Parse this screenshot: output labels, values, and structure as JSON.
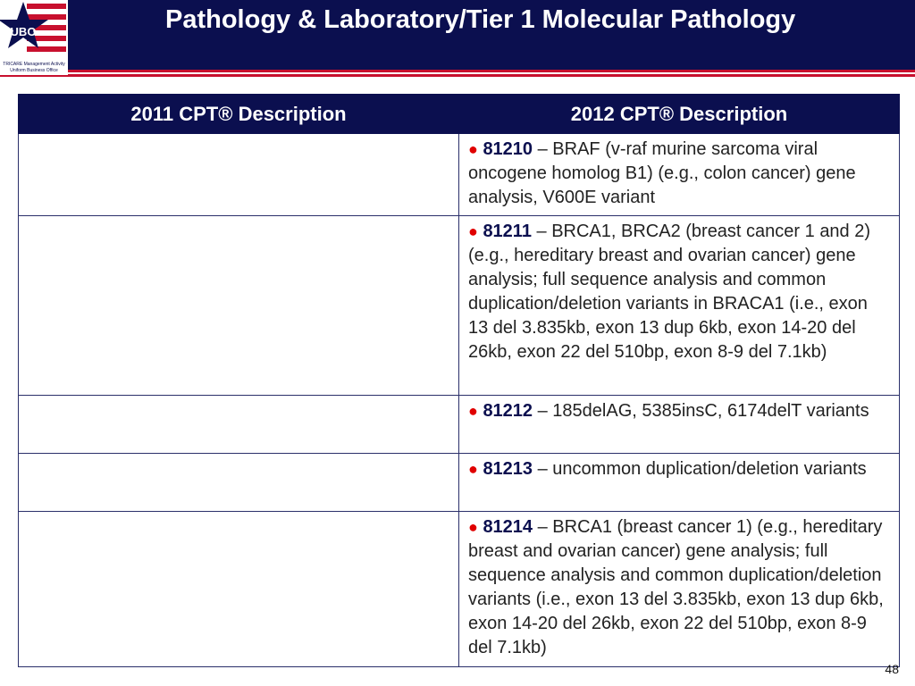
{
  "header": {
    "title": "Pathology & Laboratory/Tier 1 Molecular Pathology",
    "logo_text": "UBO",
    "logo_caption": [
      "TRICARE Management Activity",
      "Uniform Business Office"
    ]
  },
  "table": {
    "columns": [
      "2011 CPT® Description",
      "2012 CPT® Description"
    ],
    "rows": [
      {
        "code": "81210",
        "text": "– BRAF (v-raf murine sarcoma viral oncogene homolog B1) (e.g., colon cancer) gene analysis, V600E variant"
      },
      {
        "code": "81211",
        "text": "– BRCA1, BRCA2 (breast cancer 1 and 2) (e.g., hereditary breast and ovarian cancer) gene analysis; full sequence analysis and common duplication/deletion variants in BRACA1 (i.e., exon 13 del 3.835kb, exon 13 dup 6kb, exon 14-20 del 26kb, exon 22 del 510bp, exon 8-9 del 7.1kb)"
      },
      {
        "code": "81212",
        "text": "– 185delAG, 5385insC, 6174delT variants"
      },
      {
        "code": "81213",
        "text": "– uncommon duplication/deletion variants"
      },
      {
        "code": "81214",
        "text": "– BRCA1 (breast cancer 1) (e.g., hereditary breast and ovarian cancer) gene analysis; full sequence analysis and common duplication/deletion variants (i.e., exon 13 del 3.835kb, exon 13 dup 6kb, exon 14-20 del 26kb, exon 22 del 510bp, exon 8-9 del 7.1kb)"
      }
    ]
  },
  "footer": {
    "page_number": "48"
  }
}
